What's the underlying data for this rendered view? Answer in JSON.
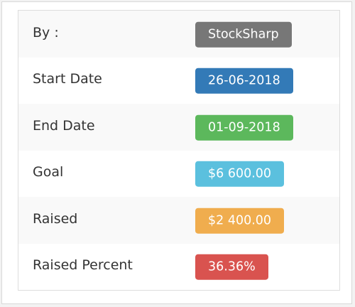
{
  "rows": [
    {
      "label": "By :",
      "value": "StockSharp",
      "color": "#777777"
    },
    {
      "label": "Start Date",
      "value": "26-06-2018",
      "color": "#337ab7"
    },
    {
      "label": "End Date",
      "value": "01-09-2018",
      "color": "#5cb85c"
    },
    {
      "label": "Goal",
      "value": "$6 600.00",
      "color": "#5bc0de"
    },
    {
      "label": "Raised",
      "value": "$2 400.00",
      "color": "#f0ad4e"
    },
    {
      "label": "Raised Percent",
      "value": "36.36%",
      "color": "#d9534f"
    }
  ]
}
